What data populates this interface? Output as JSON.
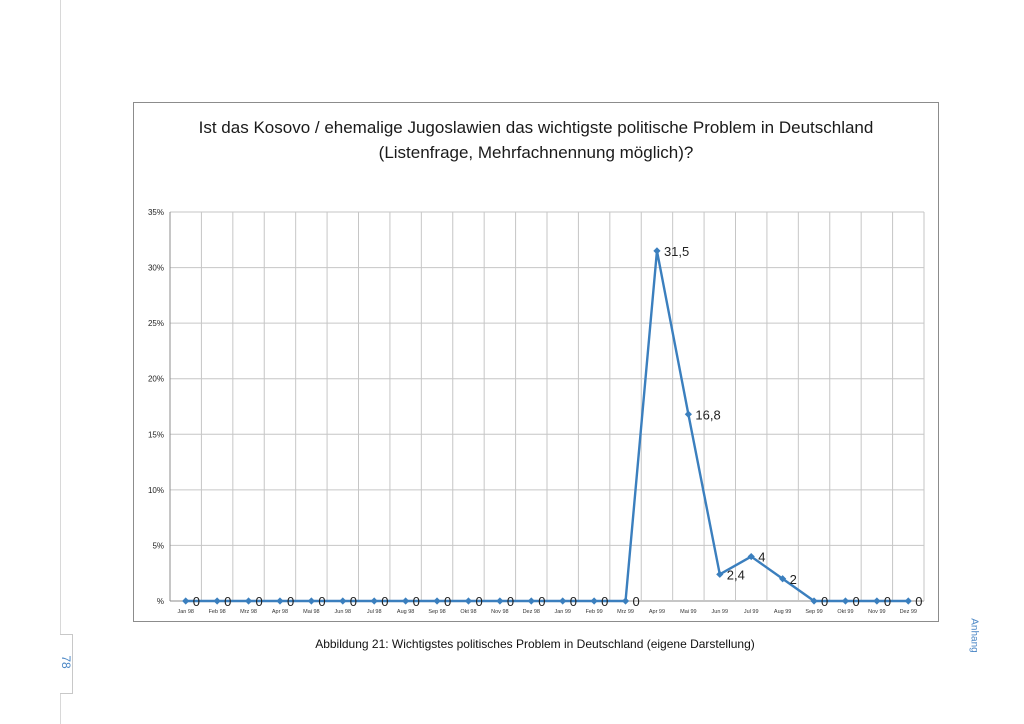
{
  "page": {
    "page_number": "78",
    "chapter": "Anhang",
    "caption": "Abbildung 21: Wichtigstes politisches Problem in Deutschland (eigene Darstellung)"
  },
  "chart_data": {
    "type": "line",
    "title_line1": "Ist das Kosovo / ehemalige Jugoslawien das wichtigste politische Problem in Deutschland",
    "title_line2": "(Listenfrage, Mehrfachnennung möglich)?",
    "categories": [
      "Jan 98",
      "Feb 98",
      "Mrz 98",
      "Apr 98",
      "Mai 98",
      "Jun 98",
      "Jul 98",
      "Aug 98",
      "Sep 98",
      "Okt 98",
      "Nov 98",
      "Dez 98",
      "Jan 99",
      "Feb 99",
      "Mrz 99",
      "Apr 99",
      "Mai 99",
      "Jun 99",
      "Jul 99",
      "Aug 99",
      "Sep 99",
      "Okt 99",
      "Nov 99",
      "Dez 99"
    ],
    "values": [
      0,
      0,
      0,
      0,
      0,
      0,
      0,
      0,
      0,
      0,
      0,
      0,
      0,
      0,
      0,
      31.5,
      16.8,
      2.4,
      4,
      2,
      0,
      0,
      0,
      0
    ],
    "data_labels": [
      "0",
      "0",
      "0",
      "0",
      "0",
      "0",
      "0",
      "0",
      "0",
      "0",
      "0",
      "0",
      "0",
      "0",
      "0",
      "31,5",
      "16,8",
      "2,4",
      "4",
      "2",
      "0",
      "0",
      "0",
      "0"
    ],
    "y_ticks": [
      0,
      5,
      10,
      15,
      20,
      25,
      30,
      35
    ],
    "y_tick_labels": [
      "%",
      "5%",
      "10%",
      "15%",
      "20%",
      "25%",
      "30%",
      "35%"
    ],
    "ylim": [
      0,
      35
    ],
    "grid": true,
    "legend": "none",
    "xlabel": "",
    "ylabel": "",
    "line_color": "#3b7fbe",
    "grid_color": "#c6c6c6"
  }
}
